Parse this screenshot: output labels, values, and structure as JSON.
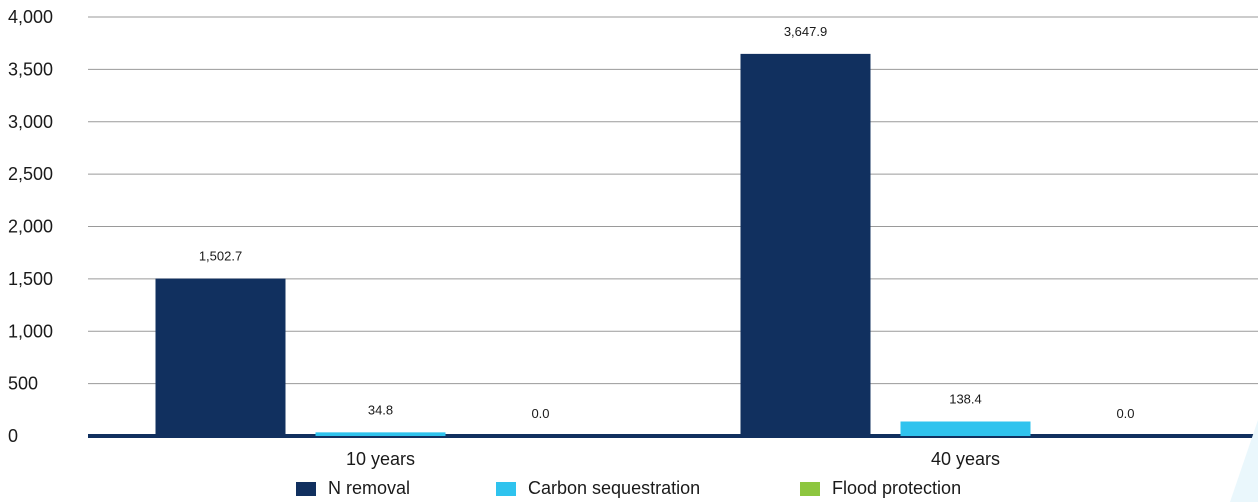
{
  "chart_data": {
    "type": "bar",
    "categories": [
      "10 years",
      "40 years"
    ],
    "series": [
      {
        "name": "N removal",
        "values": [
          1502.7,
          3647.9
        ],
        "labels": [
          "1,502.7",
          "3,647.9"
        ],
        "color": "#11305f"
      },
      {
        "name": "Carbon sequestration",
        "values": [
          34.8,
          138.4
        ],
        "labels": [
          "34.8",
          "138.4"
        ],
        "color": "#2fc3ee"
      },
      {
        "name": "Flood protection",
        "values": [
          0.0,
          0.0
        ],
        "labels": [
          "0.0",
          "0.0"
        ],
        "color": "#8dc63f"
      }
    ],
    "ylim": [
      0,
      4000
    ],
    "yticks": [
      0,
      500,
      1000,
      1500,
      2000,
      2500,
      3000,
      3500,
      4000
    ],
    "ytick_labels": [
      "0",
      "500",
      "1,000",
      "1,500",
      "2,000",
      "2,500",
      "3,000",
      "3,500",
      "4,000"
    ],
    "title": "",
    "xlabel": "",
    "ylabel": "",
    "grid": true,
    "legend_position": "bottom"
  }
}
